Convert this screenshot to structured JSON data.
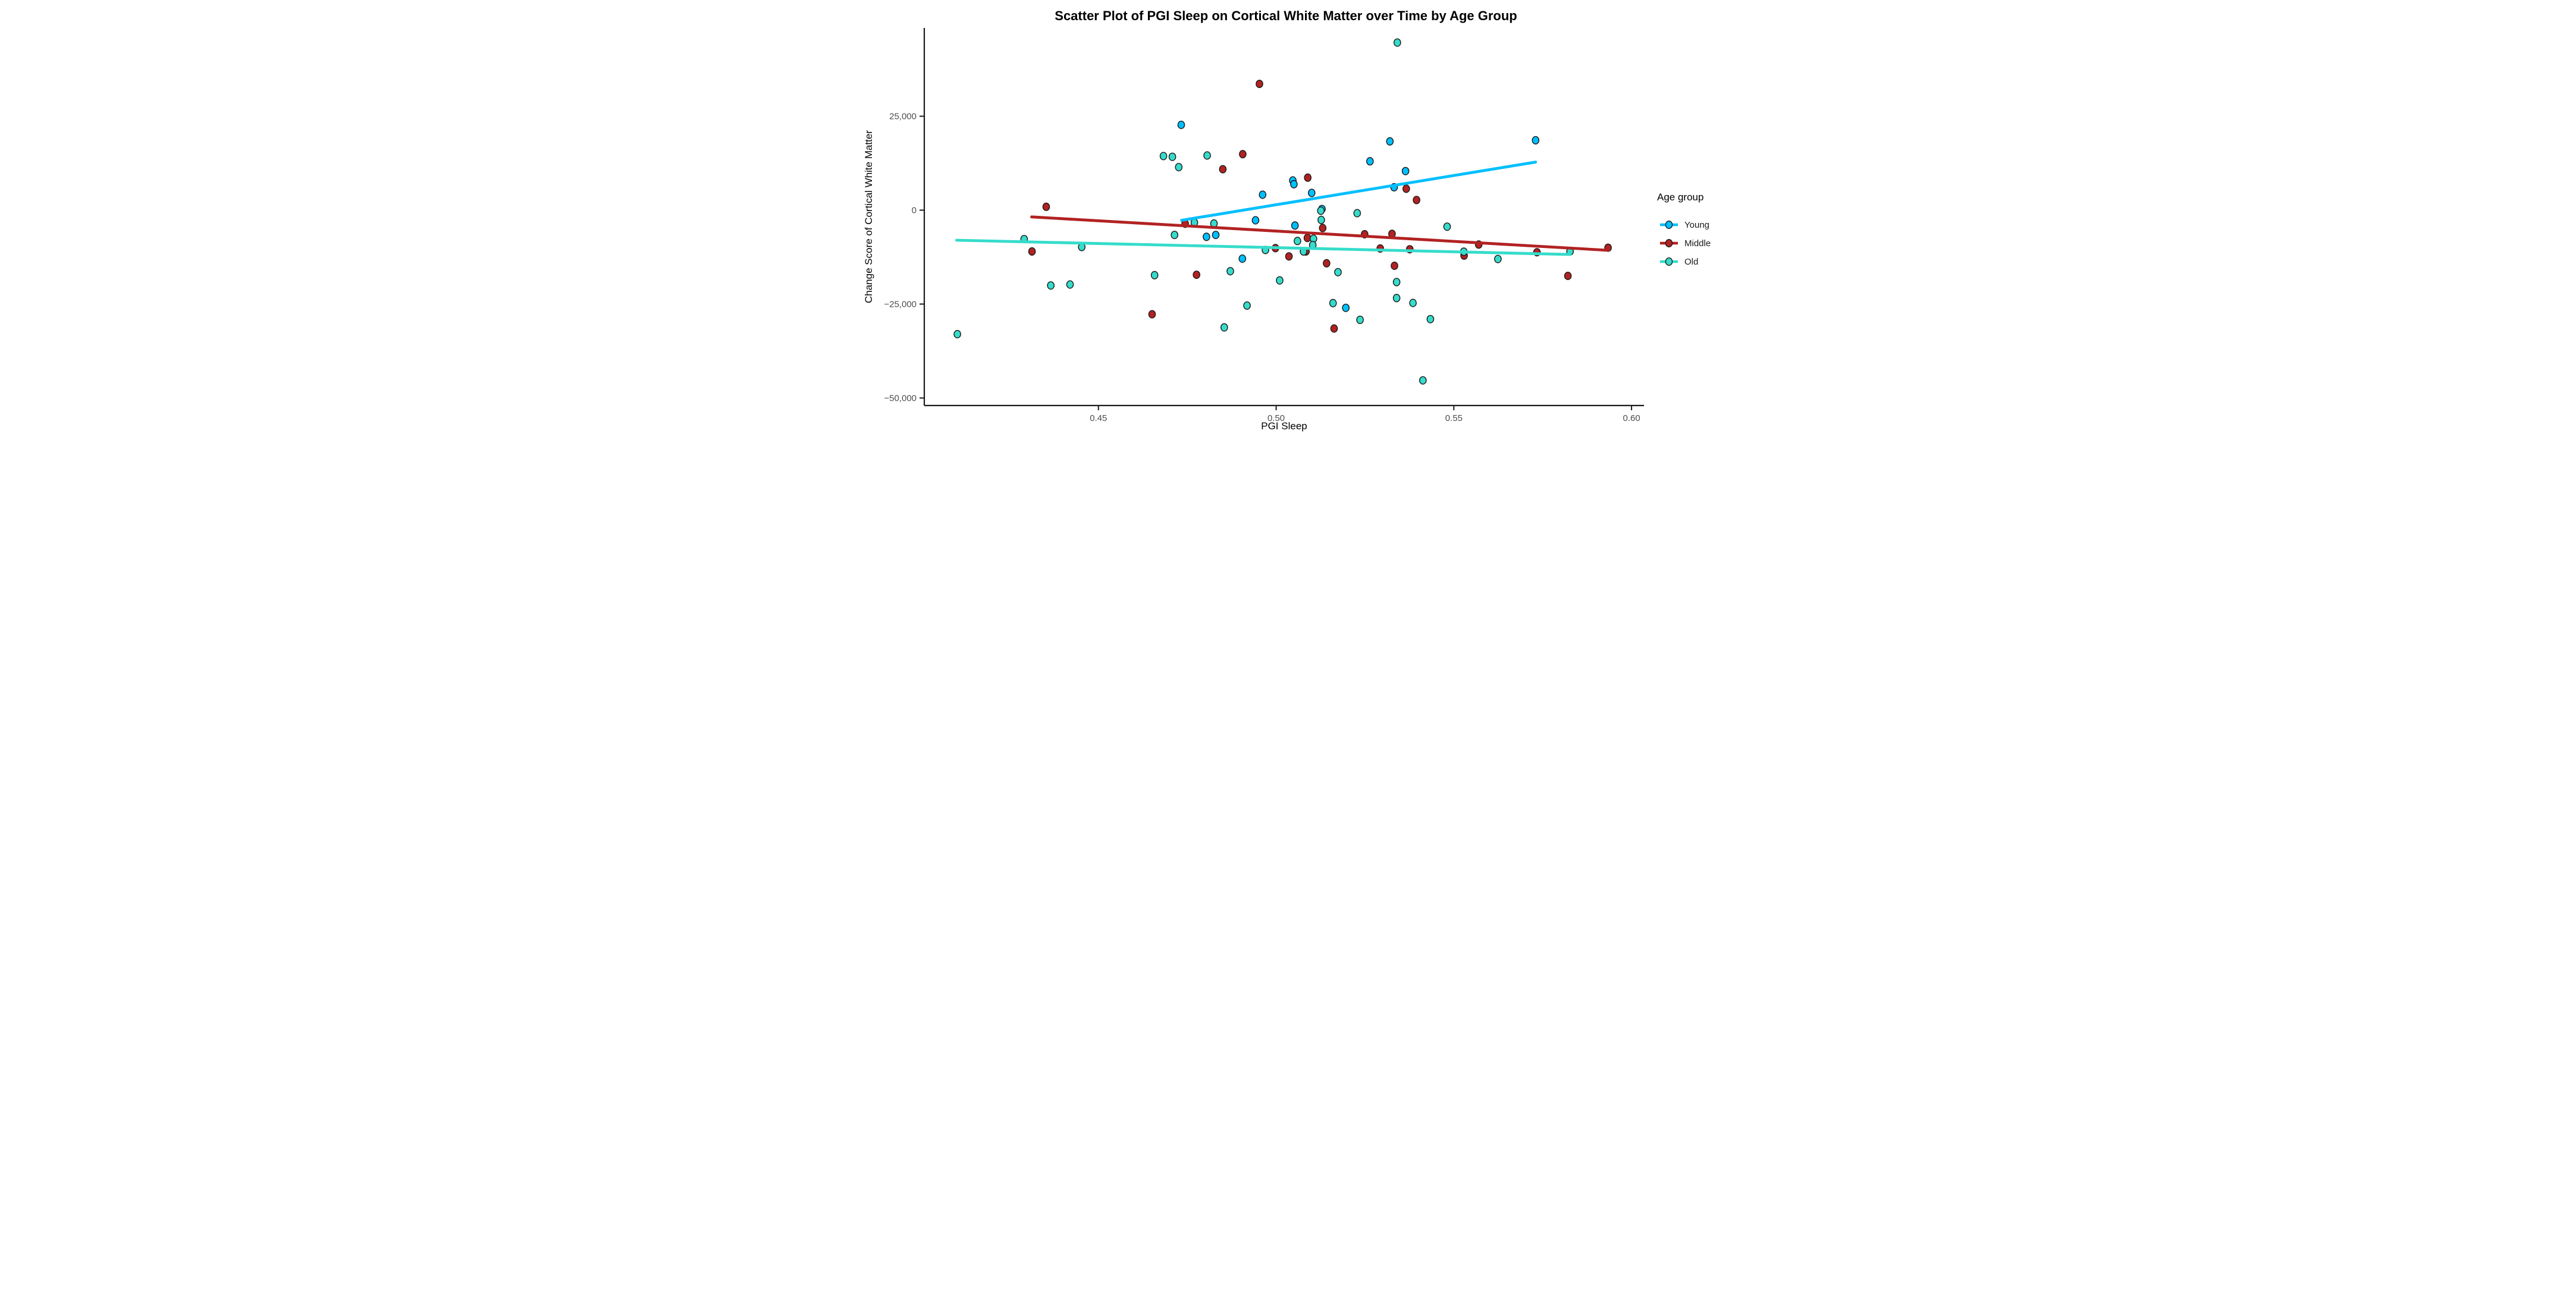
{
  "title": "Scatter Plot of PGI Sleep on Cortical White Matter over Time by Age Group",
  "legend": {
    "title": "Age group",
    "items": [
      {
        "label": "Young",
        "color": "#00BFFF"
      },
      {
        "label": "Middle",
        "color": "#B22222"
      },
      {
        "label": "Old",
        "color": "#35DCCB"
      }
    ]
  },
  "colors": {
    "young": "#00BFFF",
    "middle": "#B22222",
    "old": "#35DCCB",
    "axis": "#1a1a1a",
    "tick_text": "#4d4d4d",
    "title_text": "#000000",
    "background": "#ffffff"
  },
  "chart_data": {
    "type": "scatter",
    "title": "Scatter Plot of PGI Sleep on Cortical White Matter over Time by Age Group",
    "xlabel": "PGI Sleep",
    "ylabel": "Change Score of Cortical White Matter",
    "xlim": [
      0.401,
      0.6035
    ],
    "ylim": [
      -52000,
      48500
    ],
    "x_ticks": [
      0.45,
      0.5,
      0.55,
      0.6
    ],
    "x_tick_labels": [
      "0.45",
      "0.50",
      "0.55",
      "0.60"
    ],
    "y_ticks": [
      25000,
      0,
      -25000,
      -50000
    ],
    "y_tick_labels": [
      "25,000",
      "0",
      "−25,000",
      "−50,000"
    ],
    "grid": false,
    "legend_position": "right",
    "series": [
      {
        "name": "Young",
        "color": "#00BFFF",
        "points": [
          [
            0.4733,
            22700
          ],
          [
            0.532,
            18300
          ],
          [
            0.573,
            18600
          ],
          [
            0.5264,
            13000
          ],
          [
            0.5364,
            10400
          ],
          [
            0.5047,
            7900
          ],
          [
            0.505,
            6900
          ],
          [
            0.5332,
            6100
          ],
          [
            0.51,
            4600
          ],
          [
            0.4962,
            4100
          ],
          [
            0.5129,
            300
          ],
          [
            0.4942,
            -2700
          ],
          [
            0.5053,
            -4100
          ],
          [
            0.4804,
            -7100
          ],
          [
            0.483,
            -6600
          ],
          [
            0.4905,
            -12900
          ],
          [
            0.5196,
            -26000
          ]
        ]
      },
      {
        "name": "Middle",
        "color": "#B22222",
        "points": [
          [
            0.4953,
            33600
          ],
          [
            0.4906,
            14900
          ],
          [
            0.485,
            10900
          ],
          [
            0.5089,
            8650
          ],
          [
            0.5366,
            5700
          ],
          [
            0.5395,
            2700
          ],
          [
            0.4353,
            900
          ],
          [
            0.4744,
            -3600
          ],
          [
            0.5131,
            -4750
          ],
          [
            0.5249,
            -6400
          ],
          [
            0.5326,
            -6300
          ],
          [
            0.5088,
            -7400
          ],
          [
            0.4313,
            -11000
          ],
          [
            0.5084,
            -11000
          ],
          [
            0.4998,
            -10100
          ],
          [
            0.5036,
            -12300
          ],
          [
            0.5293,
            -10200
          ],
          [
            0.5376,
            -10400
          ],
          [
            0.557,
            -9150
          ],
          [
            0.5529,
            -12100
          ],
          [
            0.5734,
            -11200
          ],
          [
            0.5934,
            -10000
          ],
          [
            0.4776,
            -17200
          ],
          [
            0.5333,
            -14800
          ],
          [
            0.5142,
            -14150
          ],
          [
            0.5163,
            -31500
          ],
          [
            0.4651,
            -27700
          ],
          [
            0.5821,
            -17500
          ]
        ]
      },
      {
        "name": "Old",
        "color": "#35DCCB",
        "points": [
          [
            0.5341,
            44600
          ],
          [
            0.4683,
            14400
          ],
          [
            0.4708,
            14200
          ],
          [
            0.4806,
            14550
          ],
          [
            0.4726,
            11450
          ],
          [
            0.5481,
            -4400
          ],
          [
            0.477,
            -3300
          ],
          [
            0.4825,
            -3550
          ],
          [
            0.4714,
            -6600
          ],
          [
            0.5126,
            -150
          ],
          [
            0.5228,
            -800
          ],
          [
            0.5127,
            -2600
          ],
          [
            0.5105,
            -7600
          ],
          [
            0.506,
            -8200
          ],
          [
            0.4291,
            -7700
          ],
          [
            0.4453,
            -9800
          ],
          [
            0.5103,
            -9300
          ],
          [
            0.497,
            -10600
          ],
          [
            0.5077,
            -11000
          ],
          [
            0.5528,
            -11050
          ],
          [
            0.5827,
            -11000
          ],
          [
            0.5624,
            -13000
          ],
          [
            0.4658,
            -17300
          ],
          [
            0.4871,
            -16250
          ],
          [
            0.5174,
            -16500
          ],
          [
            0.501,
            -18700
          ],
          [
            0.442,
            -19800
          ],
          [
            0.4366,
            -20050
          ],
          [
            0.5339,
            -19150
          ],
          [
            0.4918,
            -25400
          ],
          [
            0.516,
            -24750
          ],
          [
            0.5339,
            -23400
          ],
          [
            0.5385,
            -24700
          ],
          [
            0.5236,
            -29200
          ],
          [
            0.5434,
            -29000
          ],
          [
            0.4854,
            -31200
          ],
          [
            0.4103,
            -33000
          ],
          [
            0.5413,
            -45300
          ]
        ]
      }
    ],
    "regression_lines": [
      {
        "name": "Middle",
        "color": "#B22222",
        "x1": 0.4312,
        "y1": -1800,
        "x2": 0.5935,
        "y2": -10700
      },
      {
        "name": "Old",
        "color": "#35DCCB",
        "x1": 0.4101,
        "y1": -8000,
        "x2": 0.5828,
        "y2": -11800
      },
      {
        "name": "Young",
        "color": "#00BFFF",
        "x1": 0.4734,
        "y1": -2700,
        "x2": 0.573,
        "y2": 12800
      }
    ]
  }
}
